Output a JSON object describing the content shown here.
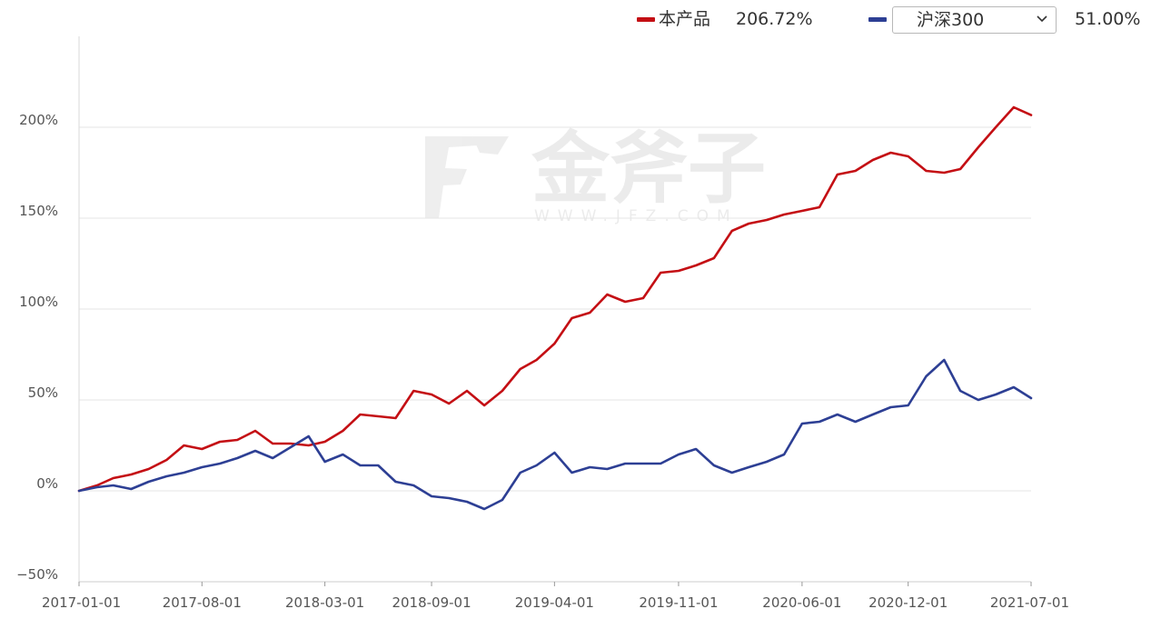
{
  "legend": {
    "product_label": "本产品",
    "product_value": "206.72%",
    "benchmark_selected": "沪深300",
    "benchmark_value": "51.00%",
    "product_color": "#c40f14",
    "benchmark_color": "#2d3f94"
  },
  "watermark": {
    "brand": "金斧子",
    "url": "WWW.JFZ.COM"
  },
  "chart_data": {
    "type": "line",
    "x_unit": "date",
    "y_unit": "percent",
    "ylim": [
      -50,
      250
    ],
    "y_ticks": [
      -50,
      0,
      50,
      100,
      150,
      200
    ],
    "y_tick_labels": [
      "−50%",
      "0%",
      "50%",
      "100%",
      "150%",
      "200%"
    ],
    "x_ticks": [
      "2017-01-01",
      "2017-08-01",
      "2018-03-01",
      "2018-09-01",
      "2019-04-01",
      "2019-11-01",
      "2020-06-01",
      "2020-12-01",
      "2021-07-01"
    ],
    "grid": "horizontal",
    "legend_position": "top-right",
    "series": [
      {
        "name": "本产品",
        "color": "#c40f14",
        "x": [
          "2017-01-01",
          "2017-02-01",
          "2017-03-01",
          "2017-04-01",
          "2017-05-01",
          "2017-06-01",
          "2017-07-01",
          "2017-08-01",
          "2017-09-01",
          "2017-10-01",
          "2017-11-01",
          "2017-12-01",
          "2018-01-01",
          "2018-02-01",
          "2018-03-01",
          "2018-04-01",
          "2018-05-01",
          "2018-06-01",
          "2018-07-01",
          "2018-08-01",
          "2018-09-01",
          "2018-10-01",
          "2018-11-01",
          "2018-12-01",
          "2019-01-01",
          "2019-02-01",
          "2019-03-01",
          "2019-04-01",
          "2019-05-01",
          "2019-06-01",
          "2019-07-01",
          "2019-08-01",
          "2019-09-01",
          "2019-10-01",
          "2019-11-01",
          "2019-12-01",
          "2020-01-01",
          "2020-02-01",
          "2020-03-01",
          "2020-04-01",
          "2020-05-01",
          "2020-06-01",
          "2020-07-01",
          "2020-08-01",
          "2020-09-01",
          "2020-10-01",
          "2020-11-01",
          "2020-12-01",
          "2021-01-01",
          "2021-02-01",
          "2021-03-01",
          "2021-04-01",
          "2021-05-01",
          "2021-06-01",
          "2021-07-01"
        ],
        "y": [
          0,
          3,
          7,
          9,
          12,
          17,
          25,
          23,
          27,
          28,
          33,
          26,
          26,
          25,
          27,
          33,
          42,
          41,
          40,
          55,
          53,
          48,
          55,
          47,
          55,
          67,
          72,
          81,
          95,
          98,
          108,
          104,
          106,
          120,
          121,
          124,
          128,
          143,
          147,
          149,
          152,
          154,
          156,
          174,
          176,
          182,
          186,
          184,
          176,
          175,
          177,
          189,
          200,
          211,
          206.72
        ]
      },
      {
        "name": "沪深300",
        "color": "#2d3f94",
        "x": [
          "2017-01-01",
          "2017-02-01",
          "2017-03-01",
          "2017-04-01",
          "2017-05-01",
          "2017-06-01",
          "2017-07-01",
          "2017-08-01",
          "2017-09-01",
          "2017-10-01",
          "2017-11-01",
          "2017-12-01",
          "2018-01-01",
          "2018-02-01",
          "2018-03-01",
          "2018-04-01",
          "2018-05-01",
          "2018-06-01",
          "2018-07-01",
          "2018-08-01",
          "2018-09-01",
          "2018-10-01",
          "2018-11-01",
          "2018-12-01",
          "2019-01-01",
          "2019-02-01",
          "2019-03-01",
          "2019-04-01",
          "2019-05-01",
          "2019-06-01",
          "2019-07-01",
          "2019-08-01",
          "2019-09-01",
          "2019-10-01",
          "2019-11-01",
          "2019-12-01",
          "2020-01-01",
          "2020-02-01",
          "2020-03-01",
          "2020-04-01",
          "2020-05-01",
          "2020-06-01",
          "2020-07-01",
          "2020-08-01",
          "2020-09-01",
          "2020-10-01",
          "2020-11-01",
          "2020-12-01",
          "2021-01-01",
          "2021-02-01",
          "2021-03-01",
          "2021-04-01",
          "2021-05-01",
          "2021-06-01",
          "2021-07-01"
        ],
        "y": [
          0,
          2,
          3,
          1,
          5,
          8,
          10,
          13,
          15,
          18,
          22,
          18,
          24,
          30,
          16,
          20,
          14,
          14,
          5,
          3,
          -3,
          -4,
          -6,
          -10,
          -5,
          10,
          14,
          21,
          10,
          13,
          12,
          15,
          15,
          15,
          20,
          23,
          14,
          10,
          13,
          16,
          20,
          37,
          38,
          42,
          38,
          42,
          46,
          47,
          63,
          72,
          55,
          50,
          53,
          57,
          51
        ]
      }
    ]
  }
}
